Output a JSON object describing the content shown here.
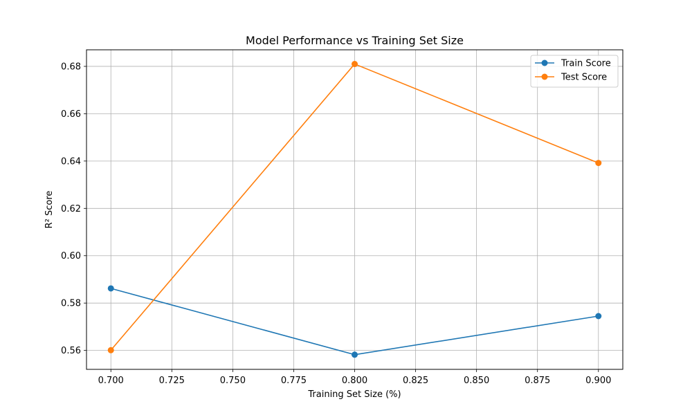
{
  "chart_data": {
    "type": "line",
    "title": "Model Performance vs Training Set Size",
    "xlabel": "Training Set Size (%)",
    "ylabel": "R² Score",
    "xlim": [
      0.69,
      0.91
    ],
    "ylim": [
      0.552,
      0.687
    ],
    "x_ticks": [
      "0.700",
      "0.725",
      "0.750",
      "0.775",
      "0.800",
      "0.825",
      "0.850",
      "0.875",
      "0.900"
    ],
    "y_ticks": [
      "0.56",
      "0.58",
      "0.60",
      "0.62",
      "0.64",
      "0.66",
      "0.68"
    ],
    "grid": true,
    "legend_position": "top-right",
    "x": [
      0.7,
      0.8,
      0.9
    ],
    "series": [
      {
        "name": "Train Score",
        "color": "#1f77b4",
        "marker": "circle",
        "values": [
          0.5862,
          0.5582,
          0.5745
        ]
      },
      {
        "name": "Test Score",
        "color": "#ff7f0e",
        "marker": "circle",
        "values": [
          0.5601,
          0.681,
          0.6392
        ]
      }
    ]
  }
}
